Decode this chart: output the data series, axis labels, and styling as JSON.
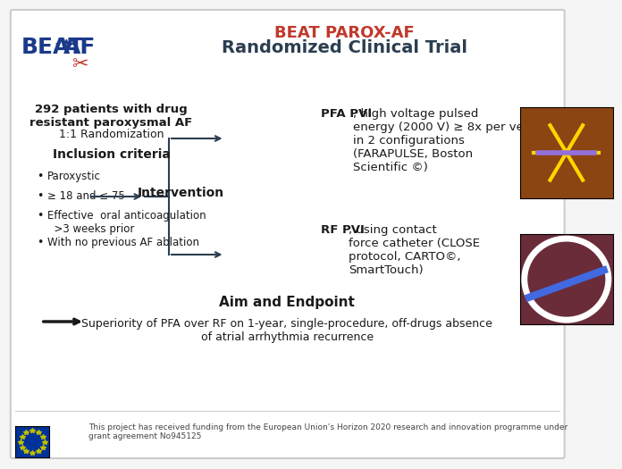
{
  "title_line1": "BEAT PAROX-AF",
  "title_line2": "Randomized Clinical Trial",
  "title_color": "#c0392b",
  "title_line2_color": "#2c3e50",
  "bg_color": "#f5f5f5",
  "left_box_title": "292 patients with drug\nresistant paroxysmal AF",
  "left_box_subtitle": "1:1 Randomization",
  "inclusion_title": "Inclusion criteria",
  "inclusion_bullets": [
    "Paroxystic",
    "≥ 18 and ≤ 75",
    "Effective  oral anticoagulation\n  >3 weeks prior",
    "With no previous AF ablation"
  ],
  "intervention_label": "Intervention",
  "pfa_text_bold": "PFA PVI",
  "pfa_text_regular": ", high voltage pulsed\nenergy (2000 V) ≥ 8x per vein\nin 2 configurations\n(FARAPULSE, Boston\nScientific ©)",
  "rf_text_bold": "RF PVI",
  "rf_text_regular": ", using contact\nforce catheter (CLOSE\nprotocol, CARTO©,\nSmartTouch)",
  "aim_title": "Aim and Endpoint",
  "aim_text": "Superiority of PFA over RF on 1-year, single-procedure, off-drugs absence\nof atrial arrhythmia recurrence",
  "eu_text": "This project has received funding from the European Union’s Horizon 2020 research and innovation programme under\ngrant agreement No945125",
  "border_color": "#cccccc",
  "arrow_color": "#2c3e50",
  "box_bg": "#ffffff"
}
